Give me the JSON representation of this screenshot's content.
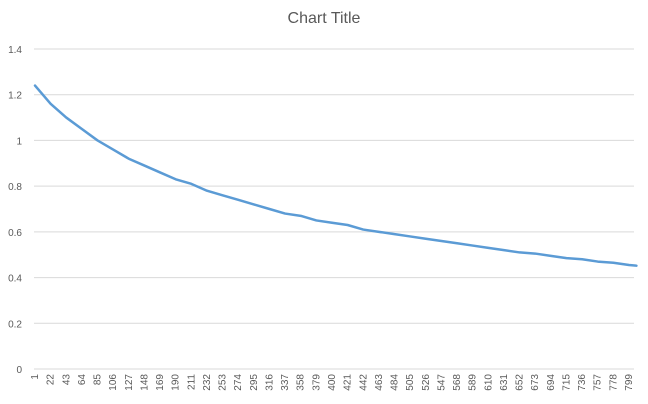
{
  "colors": {
    "series": "#5b9bd5",
    "gridline": "#d9d9d9",
    "axis_text": "#595959",
    "background": "#ffffff"
  },
  "chart_data": {
    "type": "line",
    "title": "Chart Title",
    "xlabel": "",
    "ylabel": "",
    "legend": "none",
    "grid": {
      "horizontal": true,
      "vertical": false
    },
    "ylim": [
      0,
      1.4
    ],
    "y_ticks": [
      "0",
      "0.2",
      "0.4",
      "0.6",
      "0.8",
      "1",
      "1.2",
      "1.4"
    ],
    "x_tick_labels": [
      "1",
      "22",
      "43",
      "64",
      "85",
      "106",
      "127",
      "148",
      "169",
      "190",
      "211",
      "232",
      "253",
      "274",
      "295",
      "316",
      "337",
      "358",
      "379",
      "400",
      "421",
      "442",
      "463",
      "484",
      "505",
      "526",
      "547",
      "568",
      "589",
      "610",
      "631",
      "652",
      "673",
      "694",
      "715",
      "736",
      "757",
      "778",
      "799"
    ],
    "series": [
      {
        "x": [
          1,
          22,
          43,
          64,
          85,
          106,
          127,
          148,
          169,
          190,
          211,
          232,
          253,
          274,
          295,
          316,
          337,
          358,
          379,
          400,
          421,
          442,
          463,
          484,
          505,
          526,
          547,
          568,
          589,
          610,
          631,
          652,
          673,
          694,
          715,
          736,
          757,
          778,
          799,
          809
        ],
        "values": [
          1.24,
          1.16,
          1.1,
          1.05,
          1.0,
          0.96,
          0.92,
          0.89,
          0.86,
          0.83,
          0.81,
          0.78,
          0.76,
          0.74,
          0.72,
          0.7,
          0.68,
          0.67,
          0.65,
          0.64,
          0.63,
          0.61,
          0.6,
          0.59,
          0.58,
          0.57,
          0.56,
          0.55,
          0.54,
          0.53,
          0.52,
          0.51,
          0.505,
          0.495,
          0.485,
          0.48,
          0.47,
          0.465,
          0.455,
          0.452
        ]
      }
    ]
  }
}
